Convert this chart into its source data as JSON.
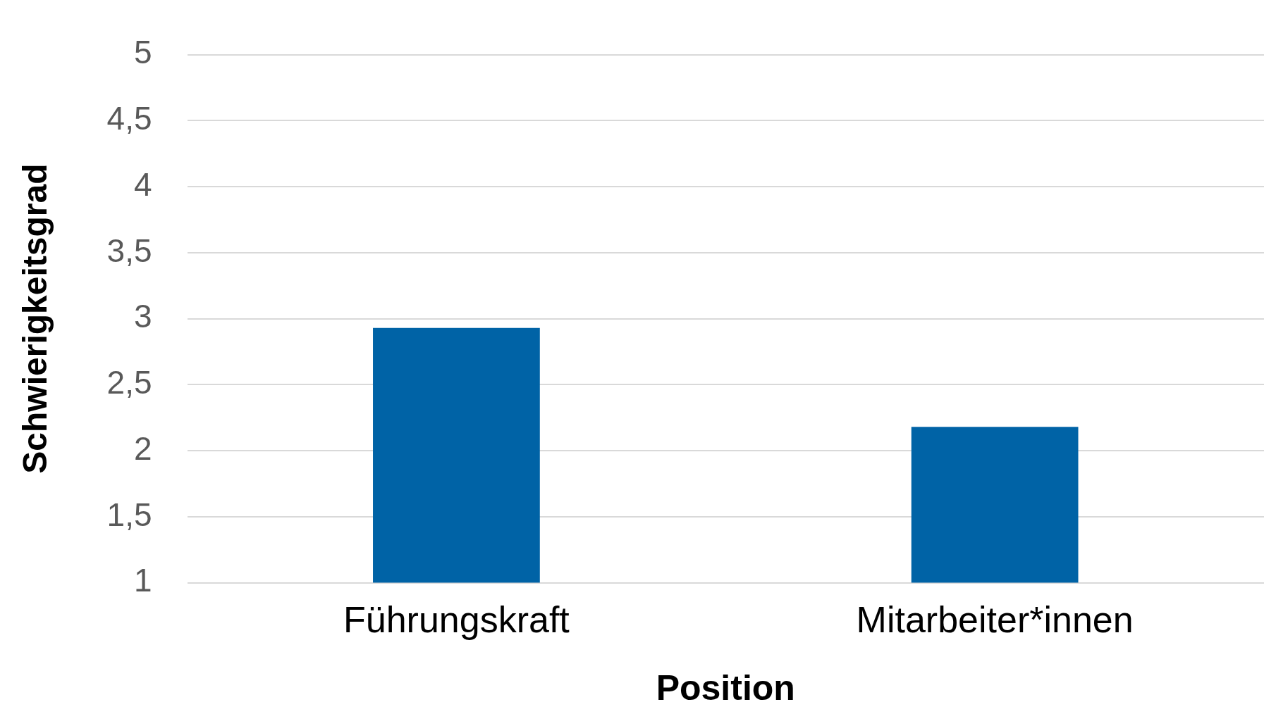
{
  "chart_data": {
    "type": "bar",
    "xlabel": "Position",
    "ylabel": "Schwierigkeitsgrad",
    "categories": [
      "Führungskraft",
      "Mitarbeiter*innen"
    ],
    "values": [
      2.93,
      2.18
    ],
    "color": "#0063a6",
    "ylim": [
      1,
      5
    ],
    "yticks": [
      1,
      {
        "value": 1.5,
        "label": "1,5"
      },
      2,
      {
        "value": 2.5,
        "label": "2,5"
      },
      3,
      {
        "value": 3.5,
        "label": "3,5"
      },
      4,
      {
        "value": 4.5,
        "label": "4,5"
      },
      5
    ],
    "grid": "y",
    "legend": false
  }
}
